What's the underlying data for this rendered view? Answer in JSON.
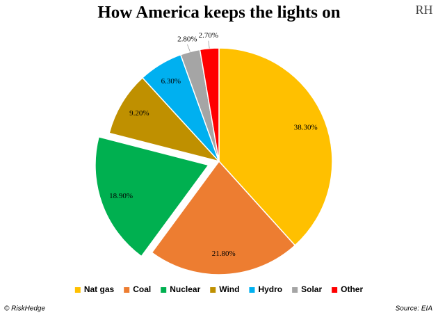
{
  "chart_data": {
    "type": "pie",
    "title": "How America keeps the lights on",
    "logo": "RH",
    "categories": [
      "Nat gas",
      "Coal",
      "Nuclear",
      "Wind",
      "Hydro",
      "Solar",
      "Other"
    ],
    "values": [
      38.3,
      21.8,
      18.9,
      9.2,
      6.3,
      2.8,
      2.7
    ],
    "value_labels": [
      "38.30%",
      "21.80%",
      "18.90%",
      "9.20%",
      "6.30%",
      "2.80%",
      "2.70%"
    ],
    "colors": [
      "#FFC000",
      "#ED7D31",
      "#00B050",
      "#BF9000",
      "#00B0F0",
      "#A5A5A5",
      "#FF0000"
    ],
    "exploded": "Nuclear",
    "legend": "bottom",
    "footer_left": "© RiskHedge",
    "source": "Source: EIA"
  }
}
